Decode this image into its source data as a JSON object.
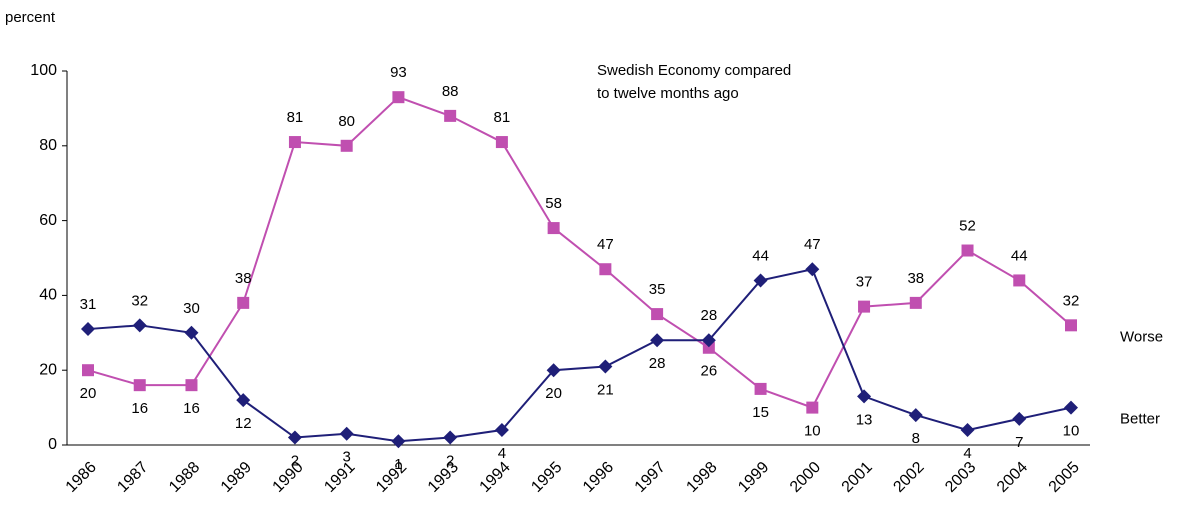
{
  "chart_data": {
    "type": "line",
    "y_label": "percent",
    "annotation": [
      "Swedish Economy compared",
      "to twelve months ago"
    ],
    "categories": [
      "1986",
      "1987",
      "1988",
      "1989",
      "1990",
      "1991",
      "1992",
      "1993",
      "1994",
      "1995",
      "1996",
      "1997",
      "1998",
      "1999",
      "2000",
      "2001",
      "2002",
      "2003",
      "2004",
      "2005"
    ],
    "series": [
      {
        "name": "Worse",
        "color": "#c04fb0",
        "marker": "square",
        "values": [
          20,
          16,
          16,
          38,
          81,
          80,
          93,
          88,
          81,
          58,
          47,
          35,
          26,
          15,
          10,
          37,
          38,
          52,
          44,
          32
        ]
      },
      {
        "name": "Better",
        "color": "#1f1f78",
        "marker": "diamond",
        "values": [
          31,
          32,
          30,
          12,
          2,
          3,
          1,
          2,
          4,
          20,
          21,
          28,
          28,
          44,
          47,
          13,
          8,
          4,
          7,
          10
        ]
      }
    ],
    "ylim": [
      0,
      100
    ],
    "yticks": [
      0,
      20,
      40,
      60,
      80,
      100
    ],
    "grid": false
  }
}
